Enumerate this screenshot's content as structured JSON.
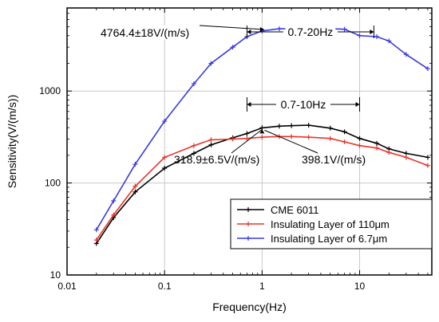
{
  "chart_data": {
    "type": "line",
    "xlabel": "Frequency(Hz)",
    "ylabel": "Sensitivity(V/(m/s))",
    "xscale": "log",
    "yscale": "log",
    "xlim": [
      0.01,
      55
    ],
    "ylim": [
      10,
      8000
    ],
    "grid": true,
    "legend_position": "bottom-right",
    "xticks": [
      {
        "value": 0.01,
        "label": "0.01"
      },
      {
        "value": 0.1,
        "label": "0.1"
      },
      {
        "value": 1,
        "label": "1"
      },
      {
        "value": 10,
        "label": "10"
      }
    ],
    "yticks": [
      {
        "value": 10,
        "label": "10"
      },
      {
        "value": 100,
        "label": "100"
      },
      {
        "value": 1000,
        "label": "1000"
      }
    ],
    "series": [
      {
        "name": "CME 6011",
        "color": "#000000",
        "x": [
          0.02,
          0.03,
          0.05,
          0.1,
          0.2,
          0.3,
          0.5,
          0.7,
          1,
          1.5,
          2,
          3,
          5,
          7,
          10,
          15,
          20,
          30,
          50
        ],
        "y": [
          22,
          42,
          80,
          145,
          210,
          260,
          310,
          345,
          398,
          415,
          420,
          425,
          395,
          360,
          305,
          270,
          235,
          210,
          190
        ]
      },
      {
        "name": "Insulating Layer of 110μm",
        "color": "#e8352a",
        "x": [
          0.02,
          0.03,
          0.05,
          0.1,
          0.2,
          0.3,
          0.5,
          0.7,
          1,
          1.5,
          2,
          3,
          5,
          7,
          10,
          15,
          20,
          30,
          50
        ],
        "y": [
          24,
          45,
          92,
          190,
          255,
          295,
          300,
          305,
          315,
          320,
          320,
          315,
          305,
          280,
          255,
          240,
          215,
          190,
          155
        ]
      },
      {
        "name": "Insulating Layer of 6.7μm",
        "color": "#3a3ae0",
        "x": [
          0.02,
          0.03,
          0.05,
          0.1,
          0.2,
          0.3,
          0.5,
          0.7,
          1,
          1.5,
          2,
          3,
          5,
          7,
          10,
          15,
          20,
          30,
          50
        ],
        "y": [
          31,
          64,
          160,
          470,
          1200,
          2000,
          3000,
          3900,
          4500,
          4750,
          4760,
          4760,
          4750,
          4700,
          4000,
          3900,
          3500,
          2500,
          1750
        ]
      }
    ],
    "annotations": [
      {
        "text": "4764.4±18V/(m/s)"
      },
      {
        "text": "0.7-20Hz"
      },
      {
        "text": "0.7-10Hz"
      },
      {
        "text": "318.9±6.5V/(m/s)"
      },
      {
        "text": "398.1V/(m/s)"
      }
    ]
  }
}
